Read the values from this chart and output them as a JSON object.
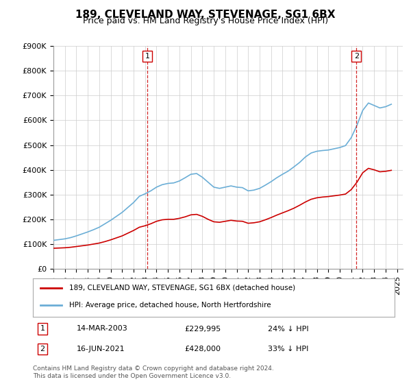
{
  "title": "189, CLEVELAND WAY, STEVENAGE, SG1 6BX",
  "subtitle": "Price paid vs. HM Land Registry's House Price Index (HPI)",
  "legend_line1": "189, CLEVELAND WAY, STEVENAGE, SG1 6BX (detached house)",
  "legend_line2": "HPI: Average price, detached house, North Hertfordshire",
  "transaction1_label": "1",
  "transaction1_date": "14-MAR-2003",
  "transaction1_price": "£229,995",
  "transaction1_note": "24% ↓ HPI",
  "transaction2_label": "2",
  "transaction2_date": "16-JUN-2021",
  "transaction2_price": "£428,000",
  "transaction2_note": "33% ↓ HPI",
  "footer": "Contains HM Land Registry data © Crown copyright and database right 2024.\nThis data is licensed under the Open Government Licence v3.0.",
  "hpi_color": "#6baed6",
  "price_color": "#cc0000",
  "transaction_line_color": "#cc0000",
  "background_color": "#ffffff",
  "grid_color": "#cccccc",
  "ylim": [
    0,
    900000
  ],
  "yticks": [
    0,
    100000,
    200000,
    300000,
    400000,
    500000,
    600000,
    700000,
    800000,
    900000
  ],
  "ytick_labels": [
    "£0",
    "£100K",
    "£200K",
    "£300K",
    "£400K",
    "£500K",
    "£600K",
    "£700K",
    "£800K",
    "£900K"
  ],
  "xlim_start": 1995.0,
  "xlim_end": 2025.5,
  "transaction1_x": 2003.2,
  "transaction2_x": 2021.45,
  "hpi_x": [
    1995,
    1995.5,
    1996,
    1996.5,
    1997,
    1997.5,
    1998,
    1998.5,
    1999,
    1999.5,
    2000,
    2000.5,
    2001,
    2001.5,
    2002,
    2002.5,
    2003,
    2003.5,
    2004,
    2004.5,
    2005,
    2005.5,
    2006,
    2006.5,
    2007,
    2007.5,
    2008,
    2008.5,
    2009,
    2009.5,
    2010,
    2010.5,
    2011,
    2011.5,
    2012,
    2012.5,
    2013,
    2013.5,
    2014,
    2014.5,
    2015,
    2015.5,
    2016,
    2016.5,
    2017,
    2017.5,
    2018,
    2018.5,
    2019,
    2019.5,
    2020,
    2020.5,
    2021,
    2021.5,
    2022,
    2022.5,
    2023,
    2023.5,
    2024,
    2024.5
  ],
  "hpi_y": [
    115000,
    118000,
    121000,
    126000,
    133000,
    141000,
    149000,
    158000,
    168000,
    182000,
    196000,
    212000,
    228000,
    248000,
    268000,
    293000,
    303000,
    315000,
    330000,
    340000,
    345000,
    347000,
    355000,
    368000,
    382000,
    385000,
    370000,
    350000,
    330000,
    325000,
    330000,
    335000,
    330000,
    328000,
    315000,
    318000,
    325000,
    338000,
    352000,
    368000,
    382000,
    395000,
    412000,
    430000,
    452000,
    468000,
    475000,
    478000,
    480000,
    485000,
    490000,
    498000,
    530000,
    580000,
    640000,
    670000,
    660000,
    650000,
    655000,
    665000
  ],
  "price_x": [
    1995,
    1995.5,
    1996,
    1996.5,
    1997,
    1997.5,
    1998,
    1998.5,
    1999,
    1999.5,
    2000,
    2000.5,
    2001,
    2001.5,
    2002,
    2002.5,
    2003,
    2003.5,
    2004,
    2004.5,
    2005,
    2005.5,
    2006,
    2006.5,
    2007,
    2007.5,
    2008,
    2008.5,
    2009,
    2009.5,
    2010,
    2010.5,
    2011,
    2011.5,
    2012,
    2012.5,
    2013,
    2013.5,
    2014,
    2014.5,
    2015,
    2015.5,
    2016,
    2016.5,
    2017,
    2017.5,
    2018,
    2018.5,
    2019,
    2019.5,
    2020,
    2020.5,
    2021,
    2021.5,
    2022,
    2022.5,
    2023,
    2023.5,
    2024,
    2024.5
  ],
  "price_y": [
    83000,
    84000,
    85000,
    87000,
    90000,
    93000,
    96000,
    100000,
    104000,
    110000,
    117000,
    125000,
    133000,
    144000,
    155000,
    168000,
    174000,
    182000,
    192000,
    198000,
    200000,
    200000,
    204000,
    210000,
    218000,
    220000,
    212000,
    200000,
    190000,
    188000,
    192000,
    196000,
    193000,
    192000,
    184000,
    186000,
    190000,
    198000,
    207000,
    217000,
    226000,
    235000,
    245000,
    257000,
    270000,
    281000,
    287000,
    290000,
    292000,
    295000,
    298000,
    302000,
    320000,
    350000,
    388000,
    406000,
    400000,
    392000,
    394000,
    398000
  ],
  "figsize": [
    6.0,
    5.6
  ],
  "dpi": 100
}
